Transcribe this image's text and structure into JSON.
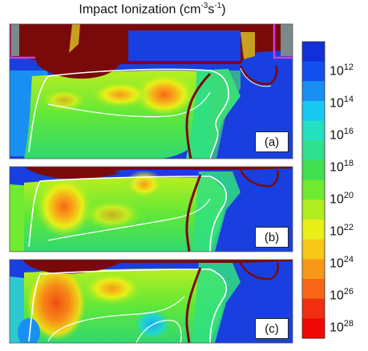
{
  "title": {
    "text": "Impact Ionization (cm",
    "exp1": "-3",
    "mid": "s",
    "exp2": "-1",
    "end": ")"
  },
  "colorbar": {
    "ticks": [
      {
        "base": "10",
        "exp": "12"
      },
      {
        "base": "10",
        "exp": "14"
      },
      {
        "base": "10",
        "exp": "16"
      },
      {
        "base": "10",
        "exp": "18"
      },
      {
        "base": "10",
        "exp": "20"
      },
      {
        "base": "10",
        "exp": "22"
      },
      {
        "base": "10",
        "exp": "24"
      },
      {
        "base": "10",
        "exp": "26"
      },
      {
        "base": "10",
        "exp": "28"
      }
    ],
    "colors": [
      "#1230d8",
      "#1450f0",
      "#1890f2",
      "#18c8f0",
      "#22e0c0",
      "#30e090",
      "#40e050",
      "#70ea30",
      "#b0ee20",
      "#e8f018",
      "#f8c818",
      "#f89818",
      "#f86818",
      "#f03010",
      "#f00808"
    ]
  },
  "panels": [
    {
      "label": "(a)"
    },
    {
      "label": "(b)"
    },
    {
      "label": "(c)"
    }
  ],
  "colors": {
    "maroon": "#7a0a0a",
    "contour": "#ffffff",
    "blue": "#1a3fe0",
    "magenta": "#d040d0"
  }
}
